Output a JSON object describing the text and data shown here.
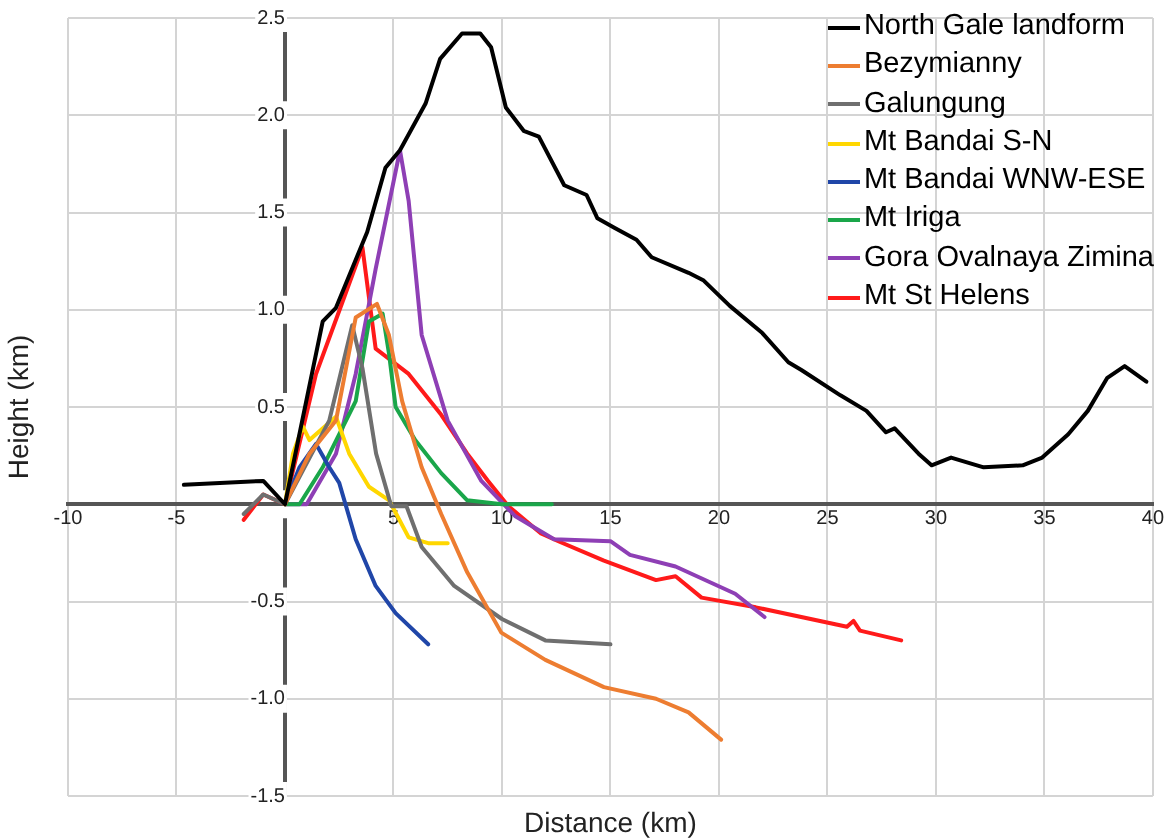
{
  "chart_data": {
    "type": "line",
    "xlabel": "Distance (km)",
    "ylabel": "Height (km)",
    "xlim": [
      -10,
      40
    ],
    "xticks": [
      -10,
      -5,
      {
        "value": 0,
        "label": null
      },
      5,
      10,
      15,
      20,
      25,
      30,
      35,
      40
    ],
    "ylim": [
      -1.5,
      2.5
    ],
    "yticks": [
      {
        "value": -1.5,
        "label": "-1.5"
      },
      {
        "value": -1,
        "label": "-1.0"
      },
      {
        "value": -0.5,
        "label": "-0.5"
      },
      {
        "value": 0,
        "label": null
      },
      {
        "value": 0.5,
        "label": "0.5"
      },
      {
        "value": 1,
        "label": "1.0"
      },
      {
        "value": 1.5,
        "label": "1.5"
      },
      {
        "value": 2,
        "label": "2.0"
      },
      {
        "value": 2.5,
        "label": "2.5"
      }
    ],
    "grid": true,
    "legend": "top right",
    "series": [
      {
        "name": "North Gale landform",
        "color": "#000000",
        "x": [
          -4.66,
          -1,
          0,
          1.74,
          2.35,
          3.79,
          4.63,
          5.3,
          6.48,
          7.15,
          8.16,
          9,
          9.5,
          10.18,
          11,
          11.7,
          12.87,
          13.9,
          14.4,
          15.2,
          16.2,
          16.9,
          18.6,
          19.3,
          20.5,
          22,
          23.2,
          23.8,
          25.6,
          26.8,
          27.7,
          28.1,
          29.2,
          29.8,
          30.7,
          32.2,
          34,
          34.9,
          36.1,
          37,
          37.9,
          38.7,
          39.7
        ],
        "values": [
          0.1,
          0.12,
          0,
          0.94,
          1.01,
          1.4,
          1.73,
          1.82,
          2.06,
          2.29,
          2.42,
          2.42,
          2.35,
          2.04,
          1.92,
          1.89,
          1.64,
          1.59,
          1.47,
          1.42,
          1.36,
          1.27,
          1.19,
          1.15,
          1.02,
          0.88,
          0.73,
          0.69,
          0.56,
          0.48,
          0.37,
          0.39,
          0.26,
          0.2,
          0.24,
          0.19,
          0.2,
          0.24,
          0.36,
          0.48,
          0.65,
          0.71,
          0.63
        ]
      },
      {
        "name": "Bezymianny",
        "color": "#ed7d31",
        "x": [
          0,
          1.13,
          2.35,
          3.26,
          4.24,
          4.79,
          5.4,
          6.3,
          7.2,
          8.4,
          9.97,
          12,
          14.7,
          17.1,
          18.6,
          20.1
        ],
        "values": [
          0,
          0.26,
          0.43,
          0.96,
          1.03,
          0.87,
          0.53,
          0.19,
          -0.05,
          -0.35,
          -0.66,
          -0.8,
          -0.94,
          -1,
          -1.07,
          -1.21
        ]
      },
      {
        "name": "Galungung",
        "color": "#6f6f6f",
        "x": [
          -1.9,
          -1,
          0,
          2.04,
          3.1,
          3.57,
          4.2,
          4.9,
          5.6,
          6.3,
          7.8,
          10,
          12,
          15
        ],
        "values": [
          -0.05,
          0.05,
          0,
          0.43,
          0.92,
          0.7,
          0.26,
          -0.01,
          -0.01,
          -0.22,
          -0.42,
          -0.59,
          -0.7,
          -0.72
        ]
      },
      {
        "name": "Mt Bandai S-N",
        "color": "#ffd700",
        "x": [
          0,
          0.37,
          0.82,
          1.13,
          2.35,
          2.96,
          3.87,
          4.8,
          5.7,
          6.6,
          7.5
        ],
        "values": [
          0,
          0.26,
          0.4,
          0.33,
          0.45,
          0.26,
          0.09,
          0.02,
          -0.17,
          -0.2,
          -0.2
        ]
      },
      {
        "name": "Mt Bandai WNW-ESE",
        "color": "#2046a8",
        "x": [
          0,
          0.67,
          1.43,
          2.04,
          2.5,
          3.26,
          4.18,
          5.1,
          6.6
        ],
        "values": [
          0,
          0.19,
          0.31,
          0.19,
          0.11,
          -0.18,
          -0.42,
          -0.56,
          -0.72
        ]
      },
      {
        "name": "Mt Iriga",
        "color": "#1aa64a",
        "x": [
          0,
          0.67,
          1.74,
          3.26,
          3.87,
          4.5,
          4.8,
          5.1,
          6,
          7.2,
          8.4,
          10,
          11.2,
          12.3
        ],
        "values": [
          0,
          0,
          0.19,
          0.53,
          0.94,
          0.98,
          0.77,
          0.5,
          0.33,
          0.16,
          0.02,
          0,
          0,
          0
        ]
      },
      {
        "name": "Gora Ovalnaya Zimina",
        "color": "#8e3fb5",
        "x": [
          0,
          1,
          2.35,
          3.26,
          4.18,
          5.3,
          5.7,
          6.3,
          7.5,
          9.05,
          10.6,
          12.4,
          15,
          15.9,
          18,
          20.75,
          22.1
        ],
        "values": [
          0,
          0,
          0.26,
          0.67,
          1.21,
          1.82,
          1.56,
          0.87,
          0.43,
          0.12,
          -0.06,
          -0.18,
          -0.19,
          -0.26,
          -0.32,
          -0.46,
          -0.58
        ]
      },
      {
        "name": "Mt St Helens",
        "color": "#ff1a1a",
        "x": [
          -1.9,
          -1,
          0,
          1.43,
          2.65,
          3.57,
          4.18,
          5.7,
          7.2,
          8.4,
          9.36,
          10.3,
          11.8,
          12.6,
          14.7,
          17.1,
          18,
          19.2,
          21.7,
          25.9,
          26.2,
          26.5,
          28.4
        ],
        "values": [
          -0.08,
          0.05,
          0,
          0.67,
          1.04,
          1.32,
          0.8,
          0.67,
          0.46,
          0.26,
          0.12,
          -0.01,
          -0.15,
          -0.19,
          -0.29,
          -0.39,
          -0.37,
          -0.48,
          -0.53,
          -0.63,
          -0.6,
          -0.65,
          -0.7
        ]
      }
    ]
  }
}
